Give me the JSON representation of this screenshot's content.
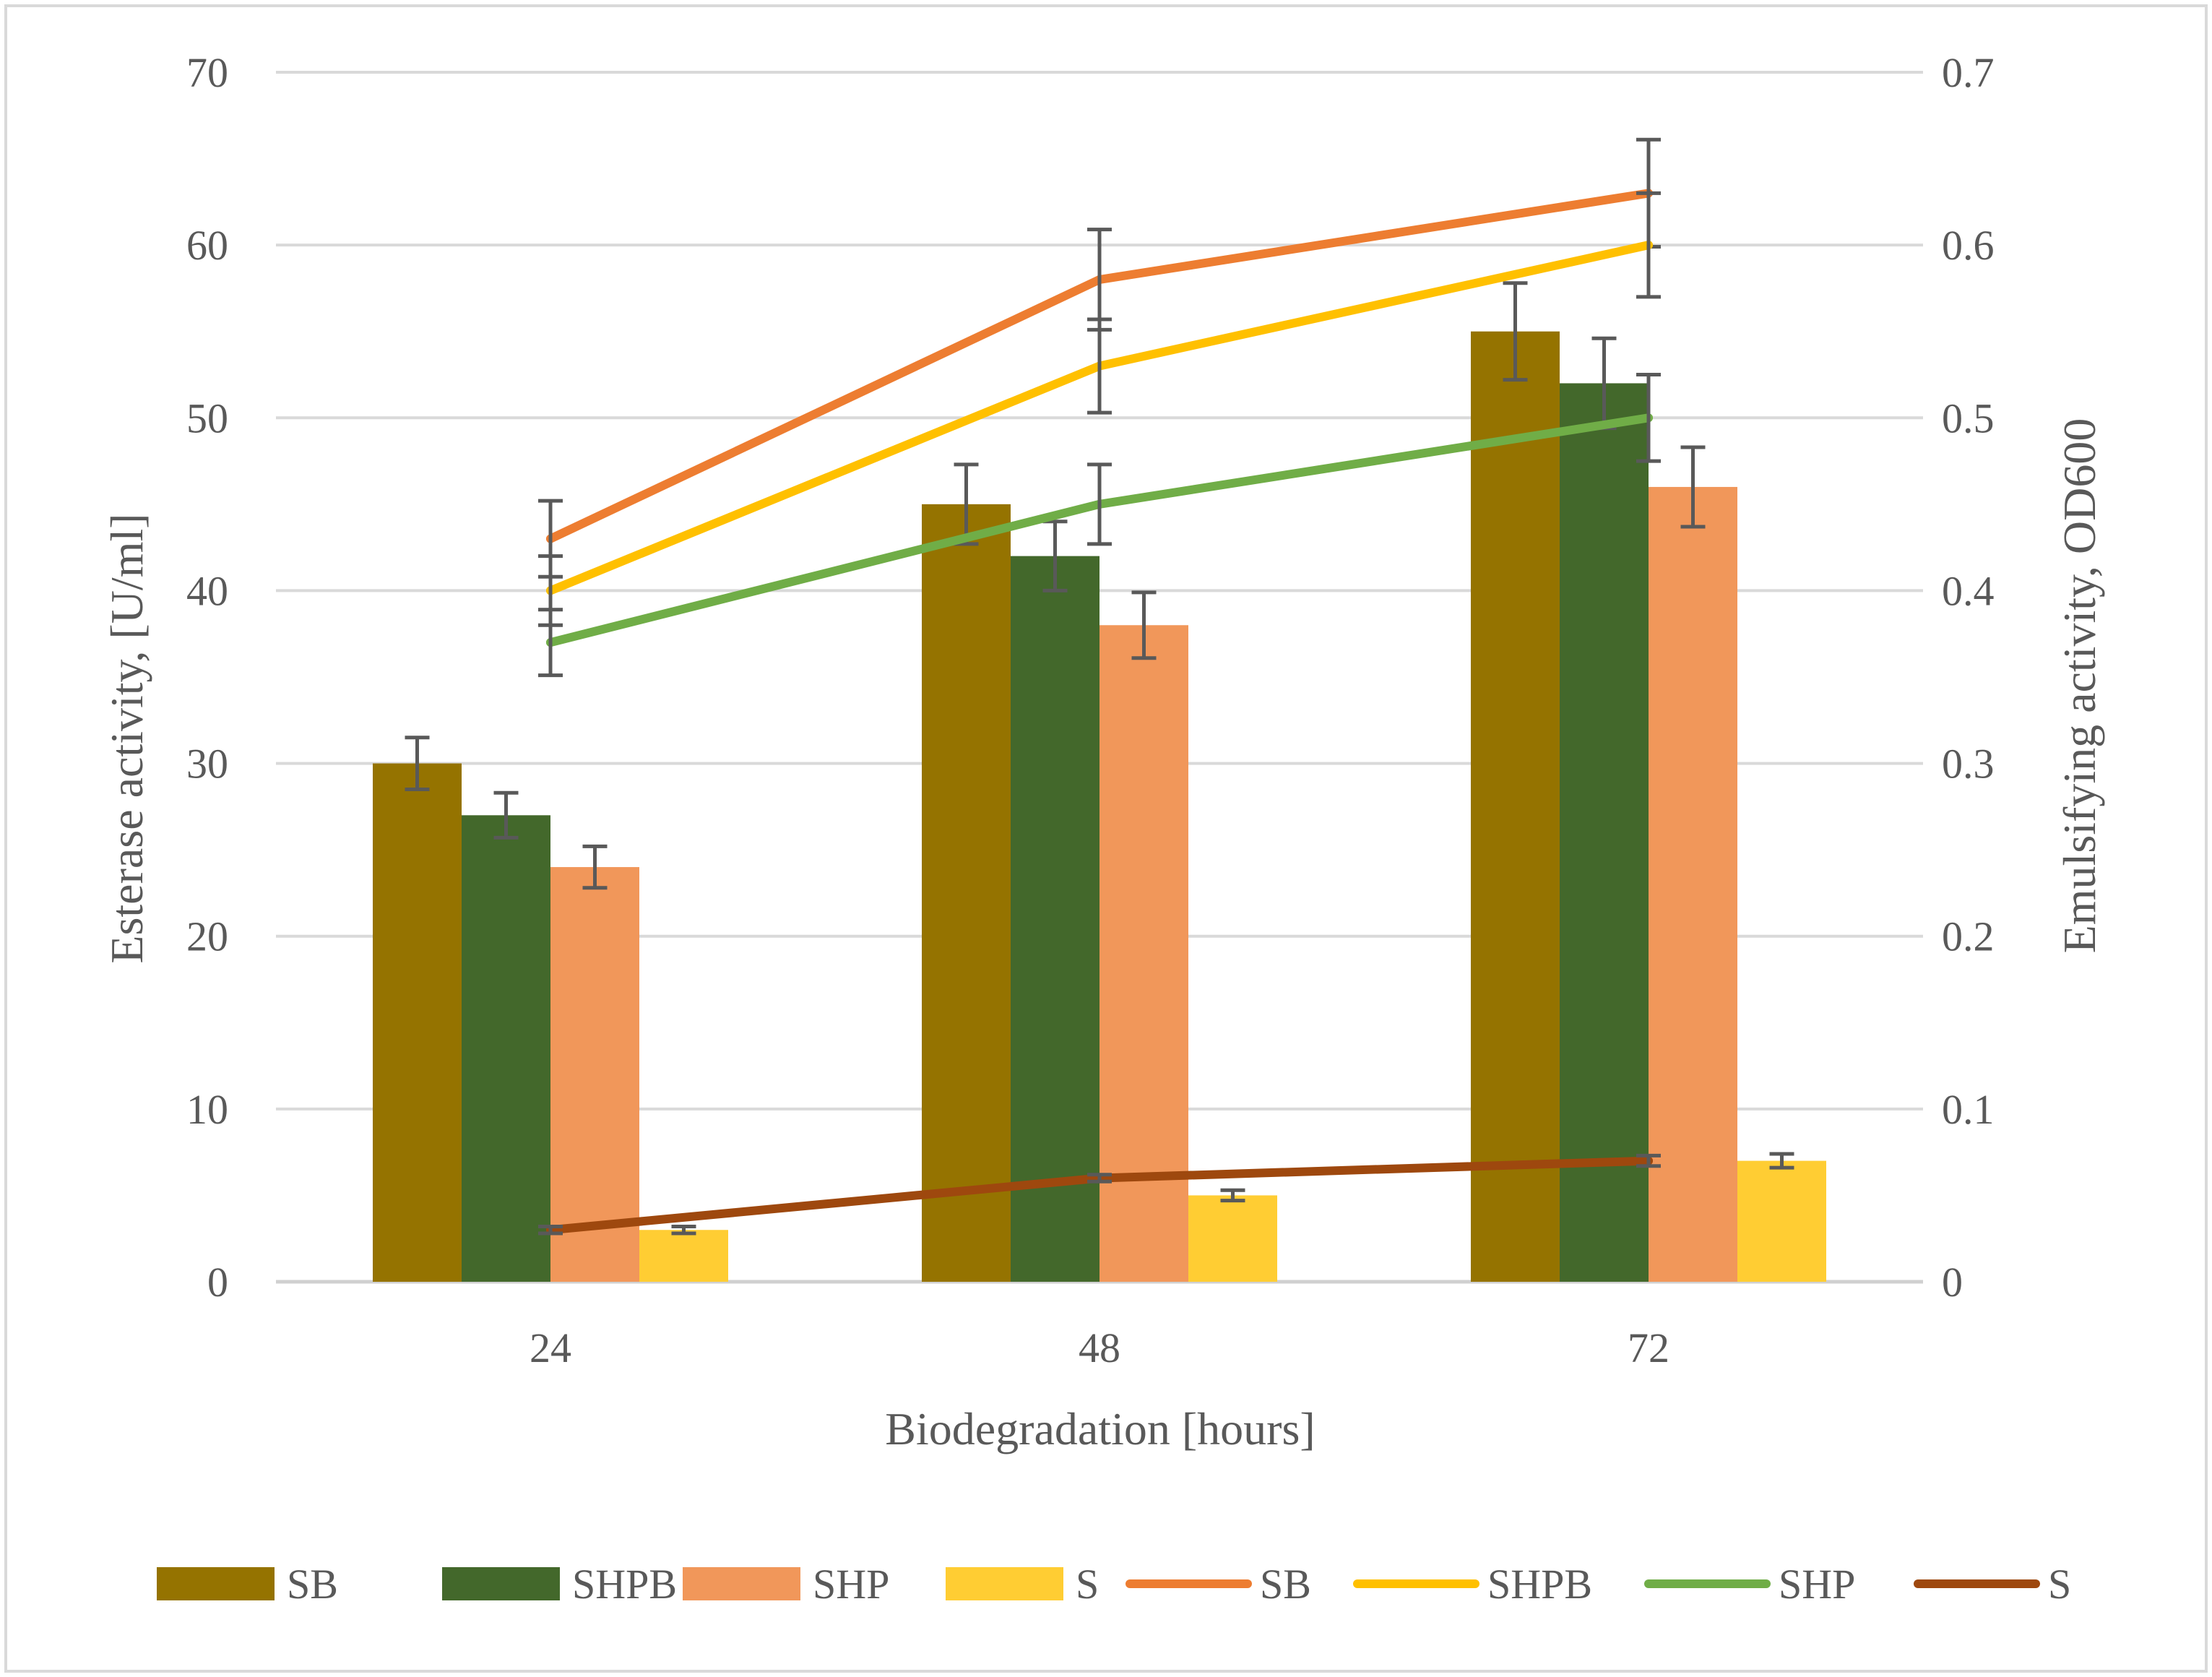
{
  "chart_data": {
    "type": "bar",
    "categories": [
      "24",
      "48",
      "72"
    ],
    "xlabel": "Biodegradation [hours]",
    "ylabel_left": "Esterase activity, [U/ml]",
    "ylabel_right": "Emulsifying activity, OD600",
    "ylim_left": [
      0,
      70
    ],
    "ylim_right": [
      0,
      0.7
    ],
    "yticks_left": [
      "0",
      "10",
      "20",
      "30",
      "40",
      "50",
      "60",
      "70"
    ],
    "yticks_right": [
      "0",
      "0.1",
      "0.2",
      "0.3",
      "0.4",
      "0.5",
      "0.6",
      "0.7"
    ],
    "grid": true,
    "legend_position": "bottom",
    "bar_series": [
      {
        "name": "SB",
        "color": "#957300",
        "values": [
          30,
          45,
          55
        ],
        "errors": [
          1.5,
          2.3,
          2.8
        ]
      },
      {
        "name": "SHPB",
        "color": "#43682B",
        "values": [
          27,
          42,
          52
        ],
        "errors": [
          1.3,
          2.0,
          2.6
        ]
      },
      {
        "name": "SHP",
        "color": "#F1975A",
        "values": [
          24,
          38,
          46
        ],
        "errors": [
          1.2,
          1.9,
          2.3
        ]
      },
      {
        "name": "S",
        "color": "#FFCD33",
        "values": [
          3,
          5,
          7
        ],
        "errors": [
          0.2,
          0.3,
          0.4
        ]
      }
    ],
    "line_series": [
      {
        "name": "SB",
        "color": "#ED7D31",
        "values": [
          0.43,
          0.58,
          0.63
        ],
        "errors": [
          0.022,
          0.029,
          0.031
        ]
      },
      {
        "name": "SHPB",
        "color": "#FFC000",
        "values": [
          0.4,
          0.53,
          0.6
        ],
        "errors": [
          0.02,
          0.027,
          0.03
        ]
      },
      {
        "name": "SHP",
        "color": "#70AD47",
        "values": [
          0.37,
          0.45,
          0.5
        ],
        "errors": [
          0.019,
          0.023,
          0.025
        ]
      },
      {
        "name": "S",
        "color": "#9E480E",
        "values": [
          0.03,
          0.06,
          0.07
        ],
        "errors": [
          0.002,
          0.002,
          0.003
        ]
      }
    ]
  }
}
